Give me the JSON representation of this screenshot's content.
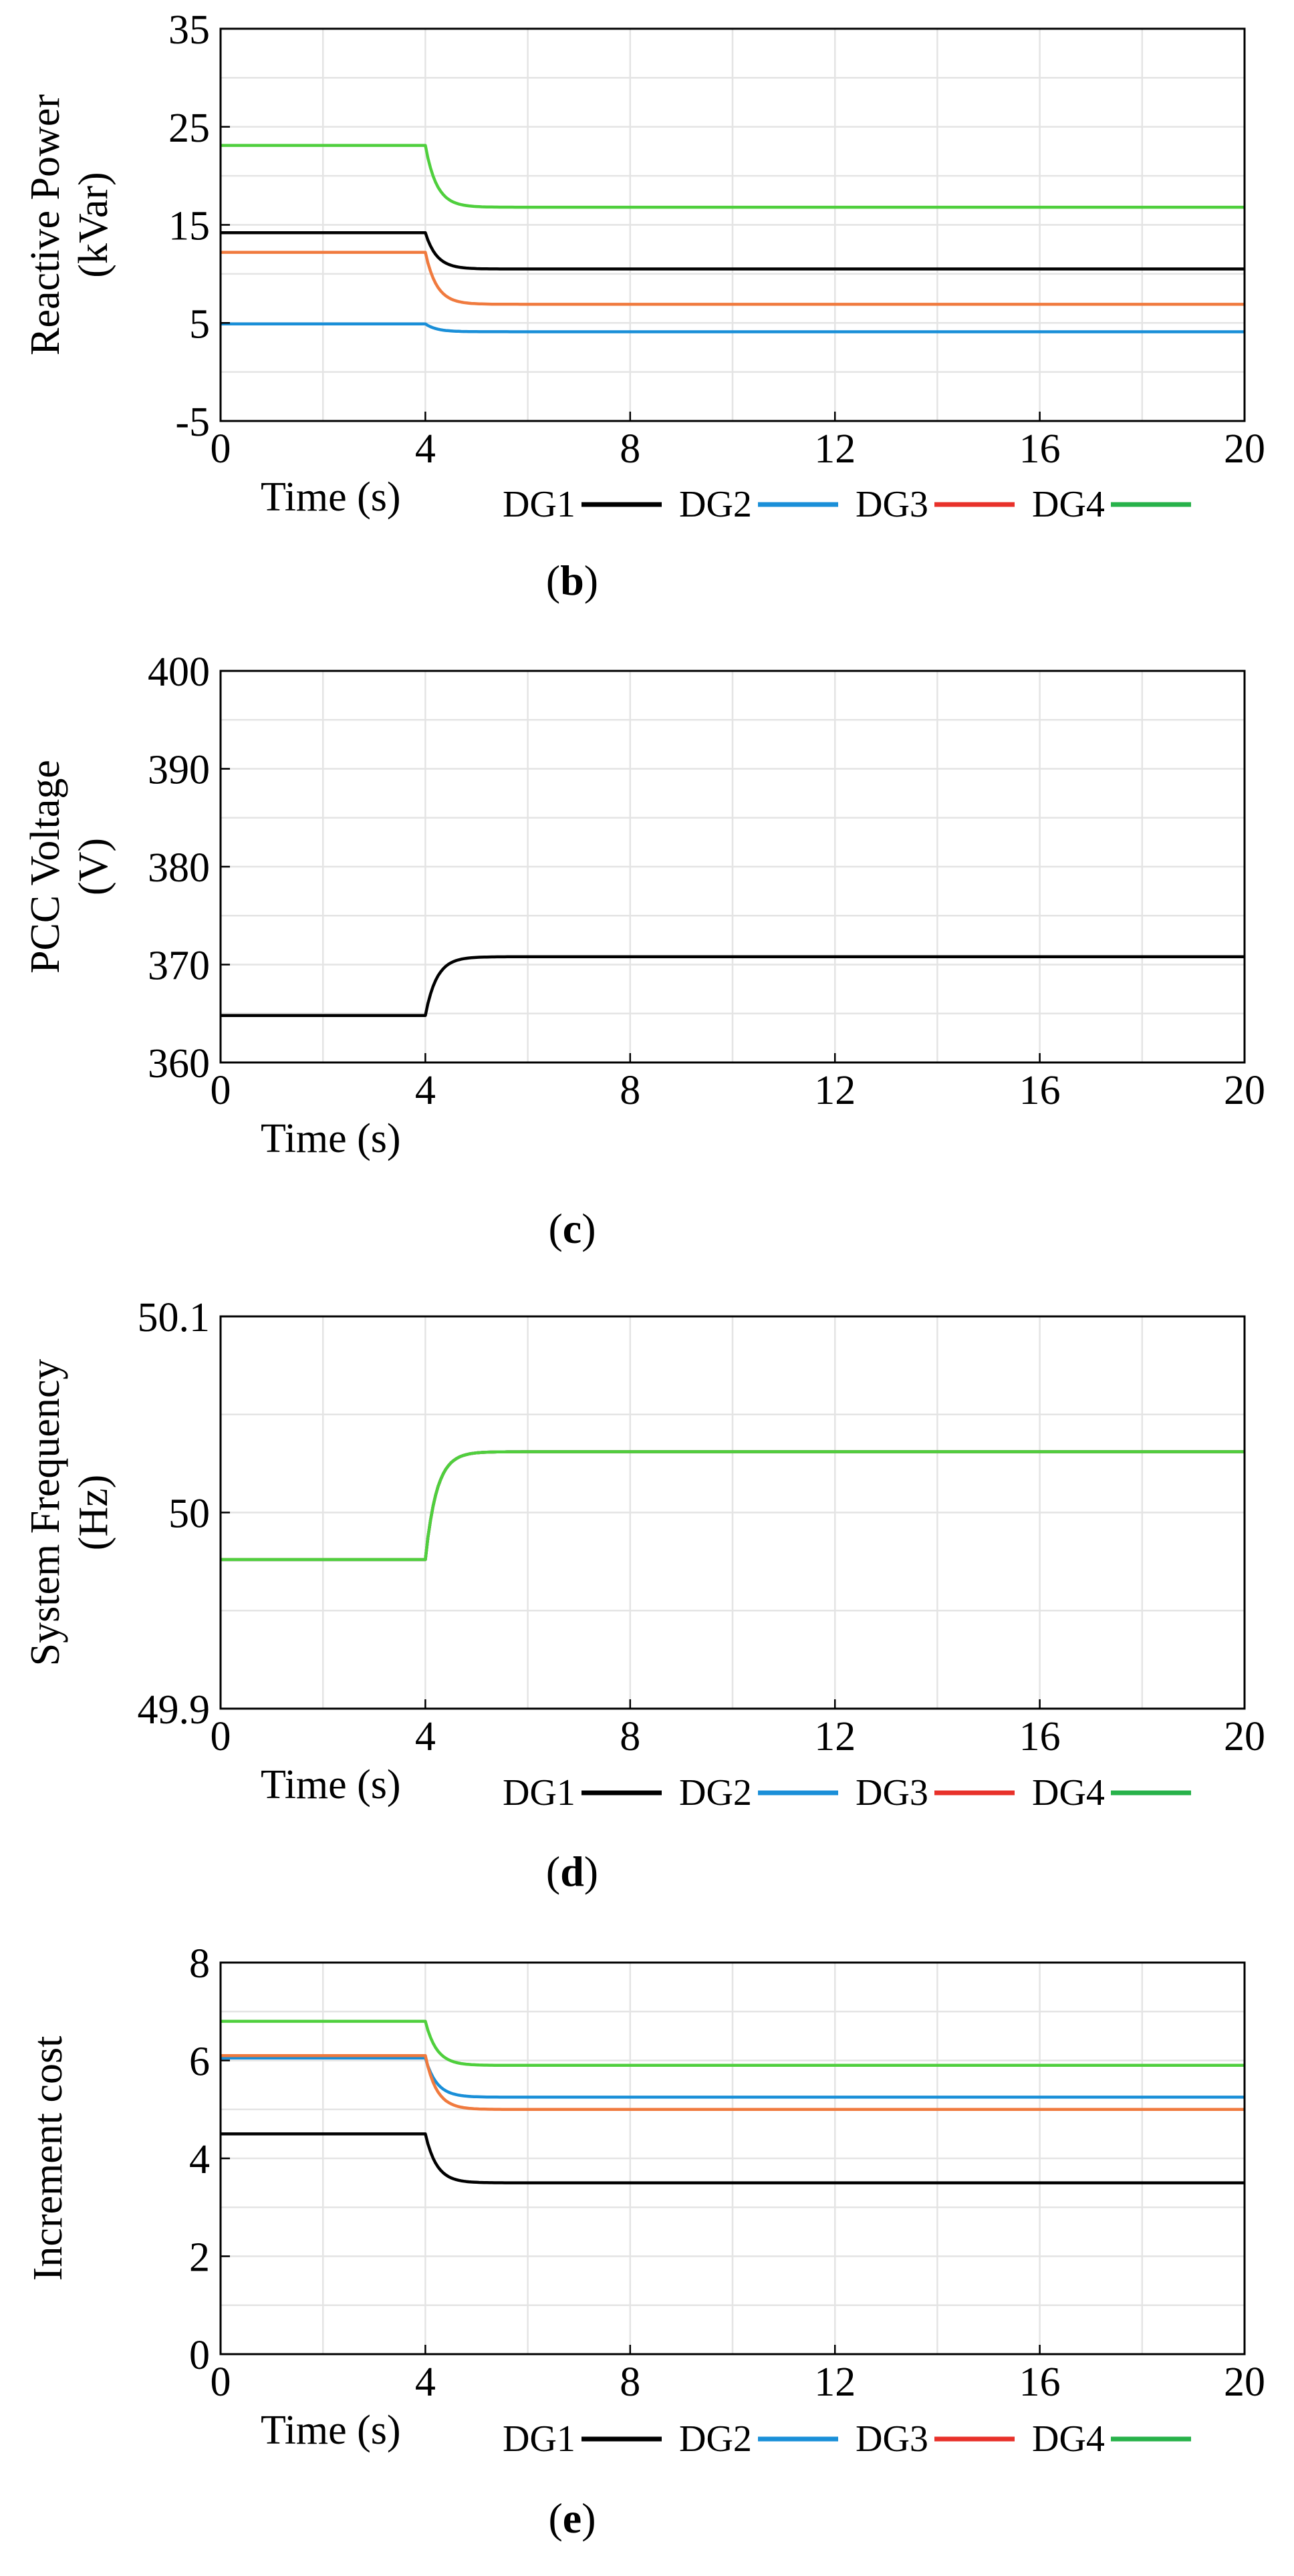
{
  "chart_data": [
    {
      "type": "line",
      "panel": "b",
      "caption_letter": "b",
      "ylabel": "Reactive Power",
      "ylabel_unit": "(kVar)",
      "xlabel": "Time (s)",
      "xlim": [
        0,
        20
      ],
      "ylim": [
        -5,
        35
      ],
      "xticks": [
        "0",
        "4",
        "8",
        "12",
        "16",
        "20"
      ],
      "yticks": [
        "35",
        "25",
        "15",
        "5",
        "-5"
      ],
      "ytick_values": [
        35,
        25,
        15,
        5,
        -5
      ],
      "grid": true,
      "legend": [
        "DG1",
        "DG2",
        "DG3",
        "DG4"
      ],
      "legend_position": "below-axis-right",
      "step_time": 4,
      "series": [
        {
          "name": "DG1",
          "before": 14.2,
          "after": 10.5,
          "color": "#000000"
        },
        {
          "name": "DG2",
          "before": 4.9,
          "after": 4.1,
          "color": "#1a8fd8"
        },
        {
          "name": "DG3",
          "before": 12.2,
          "after": 6.9,
          "color": "#f07a3e"
        },
        {
          "name": "DG4",
          "before": 23.1,
          "after": 16.8,
          "color": "#4fcf3d"
        }
      ]
    },
    {
      "type": "line",
      "panel": "c",
      "caption_letter": "c",
      "ylabel": "PCC Voltage",
      "ylabel_unit": "(V)",
      "xlabel": "Time (s)",
      "xlim": [
        0,
        20
      ],
      "ylim": [
        360,
        400
      ],
      "xticks": [
        "0",
        "4",
        "8",
        "12",
        "16",
        "20"
      ],
      "yticks": [
        "400",
        "390",
        "380",
        "370",
        "360"
      ],
      "ytick_values": [
        400,
        390,
        380,
        370,
        360
      ],
      "grid": true,
      "legend": [],
      "step_time": 4,
      "series": [
        {
          "name": "PCC Voltage",
          "before": 364.8,
          "after": 370.8,
          "color": "#000000"
        }
      ]
    },
    {
      "type": "line",
      "panel": "d",
      "caption_letter": "d",
      "ylabel": "System Frequency",
      "ylabel_unit": "(Hz)",
      "xlabel": "Time (s)",
      "xlim": [
        0,
        20
      ],
      "ylim": [
        49.9,
        50.1
      ],
      "xticks": [
        "0",
        "4",
        "8",
        "12",
        "16",
        "20"
      ],
      "yticks": [
        "50.1",
        "50",
        "49.9"
      ],
      "ytick_values": [
        50.1,
        50.0,
        49.9
      ],
      "grid": true,
      "legend": [
        "DG1",
        "DG2",
        "DG3",
        "DG4"
      ],
      "legend_position": "below-axis-right",
      "step_time": 4,
      "series": [
        {
          "name": "DG1",
          "before": 49.976,
          "after": 50.031,
          "color": "#000000"
        },
        {
          "name": "DG2",
          "before": 49.976,
          "after": 50.031,
          "color": "#1a8fd8"
        },
        {
          "name": "DG3",
          "before": 49.976,
          "after": 50.031,
          "color": "#f07a3e"
        },
        {
          "name": "DG4",
          "before": 49.976,
          "after": 50.031,
          "color": "#4fcf3d"
        }
      ]
    },
    {
      "type": "line",
      "panel": "e",
      "caption_letter": "e",
      "ylabel": "Increment cost",
      "ylabel_unit": "",
      "xlabel": "Time (s)",
      "xlim": [
        0,
        20
      ],
      "ylim": [
        0,
        8
      ],
      "xticks": [
        "0",
        "4",
        "8",
        "12",
        "16",
        "20"
      ],
      "yticks": [
        "8",
        "6",
        "4",
        "2",
        "0"
      ],
      "ytick_values": [
        8,
        6,
        4,
        2,
        0
      ],
      "grid": true,
      "legend": [
        "DG1",
        "DG2",
        "DG3",
        "DG4"
      ],
      "legend_position": "below-axis-right",
      "step_time": 4,
      "series": [
        {
          "name": "DG1",
          "before": 4.5,
          "after": 3.5,
          "color": "#000000"
        },
        {
          "name": "DG2",
          "before": 6.05,
          "after": 5.25,
          "color": "#1a8fd8"
        },
        {
          "name": "DG3",
          "before": 6.1,
          "after": 5.0,
          "color": "#f07a3e"
        },
        {
          "name": "DG4",
          "before": 6.8,
          "after": 5.9,
          "color": "#4fcf3d"
        }
      ]
    }
  ],
  "legend_swatch_colors": [
    "#000000",
    "#1a8fd8",
    "#e8312a",
    "#27b24a"
  ]
}
